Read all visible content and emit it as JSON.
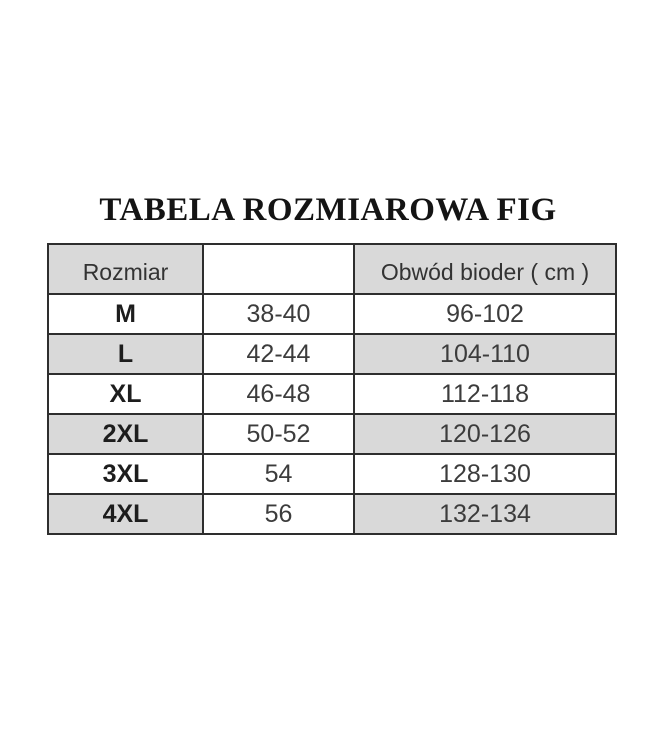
{
  "title": "TABELA ROZMIAROWA FIG",
  "colors": {
    "shaded_bg": "#d9d9d9",
    "border": "#2e2e2e",
    "number_text": "#3c3c3c",
    "label_text": "#1d1d1d",
    "background": "#ffffff"
  },
  "table": {
    "columns": [
      {
        "header": "Rozmiar"
      },
      {
        "header": ""
      },
      {
        "header": "Obwód bioder ( cm )"
      }
    ],
    "rows": [
      {
        "size": "M",
        "size_numeric": "38-40",
        "hip_cm": "96-102",
        "shaded": false
      },
      {
        "size": "L",
        "size_numeric": "42-44",
        "hip_cm": "104-110",
        "shaded": true
      },
      {
        "size": "XL",
        "size_numeric": "46-48",
        "hip_cm": "112-118",
        "shaded": false
      },
      {
        "size": "2XL",
        "size_numeric": "50-52",
        "hip_cm": "120-126",
        "shaded": true
      },
      {
        "size": "3XL",
        "size_numeric": "54",
        "hip_cm": "128-130",
        "shaded": false
      },
      {
        "size": "4XL",
        "size_numeric": "56",
        "hip_cm": "132-134",
        "shaded": true
      }
    ]
  },
  "chart_data": {
    "type": "table",
    "title": "TABELA ROZMIAROWA FIG",
    "columns": [
      "Rozmiar",
      "",
      "Obwód bioder ( cm )"
    ],
    "rows": [
      [
        "M",
        "38-40",
        "96-102"
      ],
      [
        "L",
        "42-44",
        "104-110"
      ],
      [
        "XL",
        "46-48",
        "112-118"
      ],
      [
        "2XL",
        "50-52",
        "120-126"
      ],
      [
        "3XL",
        "54",
        "128-130"
      ],
      [
        "4XL",
        "56",
        "132-134"
      ]
    ]
  }
}
